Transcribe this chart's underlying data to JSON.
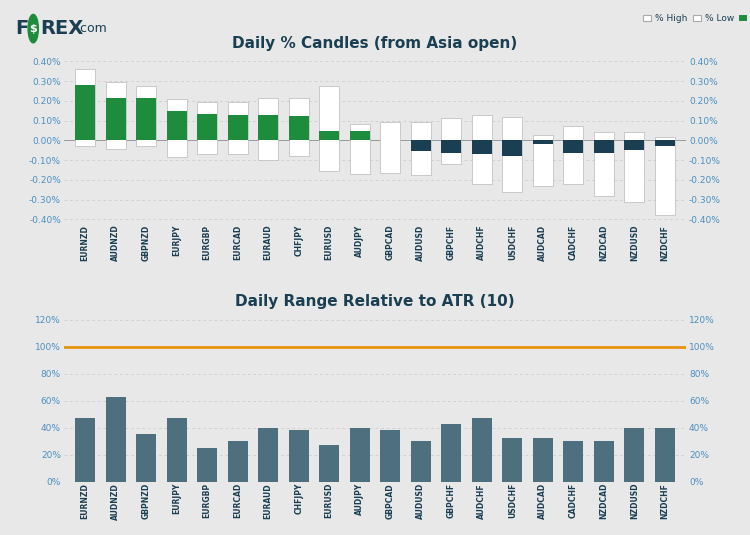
{
  "title1": "Daily % Candles (from Asia open)",
  "title2": "Daily Range Relative to ATR (10)",
  "pairs": [
    "EURNZD",
    "AUDNZD",
    "GBPNZD",
    "EURJPY",
    "EURGBP",
    "EURCAD",
    "EURAUD",
    "CHFJPY",
    "EURUSD",
    "AUDJPY",
    "GBPCAD",
    "AUDUSD",
    "GBPCHF",
    "AUDCHF",
    "USDCHF",
    "AUDCAD",
    "CADCHF",
    "NZDCAD",
    "NZDUSD",
    "NZDCHF"
  ],
  "high": [
    0.36,
    0.295,
    0.275,
    0.21,
    0.195,
    0.195,
    0.215,
    0.215,
    0.275,
    0.082,
    0.095,
    0.095,
    0.115,
    0.13,
    0.12,
    0.025,
    0.075,
    0.045,
    0.045,
    0.018
  ],
  "low": [
    -0.03,
    -0.045,
    -0.03,
    -0.085,
    -0.07,
    -0.07,
    -0.1,
    -0.08,
    -0.155,
    -0.17,
    -0.165,
    -0.175,
    -0.12,
    -0.22,
    -0.26,
    -0.23,
    -0.22,
    -0.28,
    -0.31,
    -0.38
  ],
  "close": [
    0.28,
    0.215,
    0.215,
    0.15,
    0.135,
    0.13,
    0.13,
    0.125,
    0.05,
    0.05,
    0.0,
    -0.055,
    -0.065,
    -0.07,
    -0.08,
    -0.02,
    -0.065,
    -0.065,
    -0.05,
    -0.03
  ],
  "pct_atr": [
    47,
    63,
    35,
    47,
    25,
    30,
    40,
    38,
    27,
    40,
    38,
    30,
    43,
    47,
    32,
    32,
    30,
    30,
    40,
    40
  ],
  "atr_line": 100,
  "bar_color_pos": "#1d8c3c",
  "bar_color_neg": "#1a3f52",
  "candle_body_color": "#ffffff",
  "atr_bar_color": "#4d6f7e",
  "atr_line_color": "#e8940a",
  "bg_color": "#e8e8e8",
  "text_color": "#1a3f52",
  "grid_color": "#c8c8c8",
  "label_color": "#4a90c0",
  "ylim1": [
    -0.42,
    0.44
  ],
  "ylim2": [
    0,
    126
  ],
  "yticks1": [
    -0.4,
    -0.3,
    -0.2,
    -0.1,
    0.0,
    0.1,
    0.2,
    0.3,
    0.4
  ],
  "ytick1_labels": [
    "-0.40%",
    "-0.30%",
    "-0.20%",
    "-0.10%",
    "0.00%",
    "0.10%",
    "0.20%",
    "0.30%",
    "0.40%"
  ],
  "yticks2": [
    0,
    20,
    40,
    60,
    80,
    100,
    120
  ],
  "ytick2_labels": [
    "0%",
    "20%",
    "40%",
    "60%",
    "80%",
    "100%",
    "120%"
  ]
}
